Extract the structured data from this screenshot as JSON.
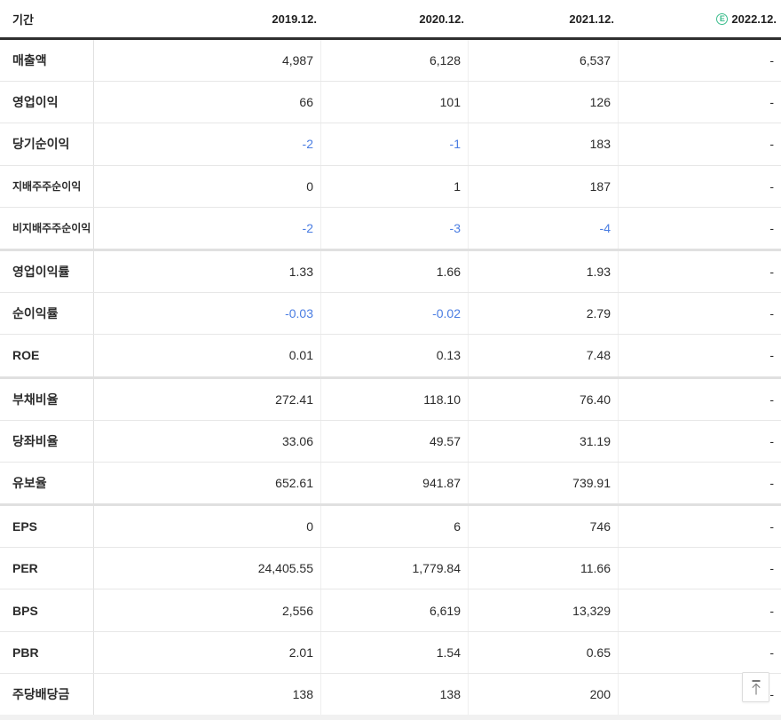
{
  "table": {
    "period_label": "기간",
    "estimate_badge": "E",
    "columns": [
      {
        "label": "2019.12.",
        "estimate": false
      },
      {
        "label": "2020.12.",
        "estimate": false
      },
      {
        "label": "2021.12.",
        "estimate": false
      },
      {
        "label": "2022.12.",
        "estimate": true
      }
    ],
    "rows": [
      {
        "label": "매출액",
        "small": false,
        "group_end": false,
        "values": [
          "4,987",
          "6,128",
          "6,537",
          "-"
        ]
      },
      {
        "label": "영업이익",
        "small": false,
        "group_end": false,
        "values": [
          "66",
          "101",
          "126",
          "-"
        ]
      },
      {
        "label": "당기순이익",
        "small": false,
        "group_end": false,
        "values": [
          "-2",
          "-1",
          "183",
          "-"
        ]
      },
      {
        "label": "지배주주순이익",
        "small": true,
        "group_end": false,
        "values": [
          "0",
          "1",
          "187",
          "-"
        ]
      },
      {
        "label": "비지배주주순이익",
        "small": true,
        "group_end": true,
        "values": [
          "-2",
          "-3",
          "-4",
          "-"
        ]
      },
      {
        "label": "영업이익률",
        "small": false,
        "group_end": false,
        "values": [
          "1.33",
          "1.66",
          "1.93",
          "-"
        ]
      },
      {
        "label": "순이익률",
        "small": false,
        "group_end": false,
        "values": [
          "-0.03",
          "-0.02",
          "2.79",
          "-"
        ]
      },
      {
        "label": "ROE",
        "small": false,
        "group_end": true,
        "values": [
          "0.01",
          "0.13",
          "7.48",
          "-"
        ]
      },
      {
        "label": "부채비율",
        "small": false,
        "group_end": false,
        "values": [
          "272.41",
          "118.10",
          "76.40",
          "-"
        ]
      },
      {
        "label": "당좌비율",
        "small": false,
        "group_end": false,
        "values": [
          "33.06",
          "49.57",
          "31.19",
          "-"
        ]
      },
      {
        "label": "유보율",
        "small": false,
        "group_end": true,
        "values": [
          "652.61",
          "941.87",
          "739.91",
          "-"
        ]
      },
      {
        "label": "EPS",
        "small": false,
        "group_end": false,
        "values": [
          "0",
          "6",
          "746",
          "-"
        ]
      },
      {
        "label": "PER",
        "small": false,
        "group_end": false,
        "values": [
          "24,405.55",
          "1,779.84",
          "11.66",
          "-"
        ]
      },
      {
        "label": "BPS",
        "small": false,
        "group_end": false,
        "values": [
          "2,556",
          "6,619",
          "13,329",
          "-"
        ]
      },
      {
        "label": "PBR",
        "small": false,
        "group_end": false,
        "values": [
          "2.01",
          "1.54",
          "0.65",
          "-"
        ]
      },
      {
        "label": "주당배당금",
        "small": false,
        "group_end": false,
        "values": [
          "138",
          "138",
          "200",
          "-"
        ]
      }
    ]
  },
  "icons": {
    "estimate": "estimate-circle-e-icon",
    "scroll_top": "arrow-up-to-bar-icon"
  },
  "colors": {
    "negative": "#4a7de2",
    "estimate": "#3cbd8d",
    "header-rule": "#2f2f2f",
    "row-line": "#e7e7e7"
  }
}
